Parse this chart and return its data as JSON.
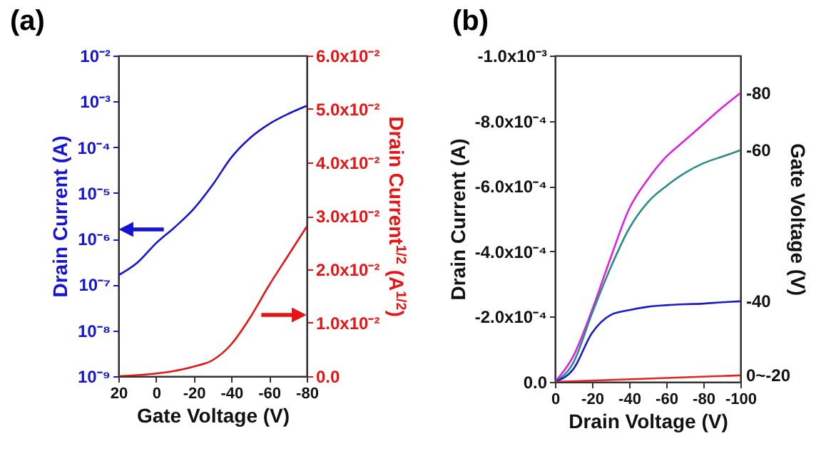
{
  "chart_data": [
    {
      "type": "line",
      "title": "(a)",
      "xlabel": "Gate Voltage (V)",
      "ylabel": "Drain Current (A)",
      "y2label": "Drain Current$^{1/2}$ (A$^{1/2}$)",
      "x": [
        20,
        10,
        0,
        -10,
        -20,
        -30,
        -40,
        -50,
        -60,
        -70,
        -80
      ],
      "xlim": [
        20,
        -80
      ],
      "xticks": [
        20,
        0,
        -20,
        -40,
        -60,
        -80
      ],
      "log": "y",
      "ylim": [
        1e-09,
        0.01
      ],
      "yticks": [
        {
          "value": 1e-09,
          "label": "10⁻⁹"
        },
        {
          "value": 1e-08,
          "label": "10⁻⁸"
        },
        {
          "value": 1e-07,
          "label": "10⁻⁷"
        },
        {
          "value": 1e-06,
          "label": "10⁻⁶"
        },
        {
          "value": 1e-05,
          "label": "10⁻⁵"
        },
        {
          "value": 0.0001,
          "label": "10⁻⁴"
        },
        {
          "value": 0.001,
          "label": "10⁻³"
        },
        {
          "value": 0.01,
          "label": "10⁻²"
        }
      ],
      "y2lim": [
        0,
        0.06
      ],
      "y2ticks": [
        {
          "value": 0,
          "label": "0.0"
        },
        {
          "value": 0.01,
          "label": "1.0x10⁻²"
        },
        {
          "value": 0.02,
          "label": "2.0x10⁻²"
        },
        {
          "value": 0.03,
          "label": "3.0x10⁻²"
        },
        {
          "value": 0.04,
          "label": "4.0x10⁻²"
        },
        {
          "value": 0.05,
          "label": "5.0x10⁻²"
        },
        {
          "value": 0.06,
          "label": "6.0x10⁻²"
        }
      ],
      "series": [
        {
          "color": "#1414d2",
          "values": [
            1.6e-07,
            3e-07,
            8e-07,
            1.8e-06,
            4.5e-06,
            1.5e-05,
            6e-05,
            0.00016,
            0.00032,
            0.00053,
            0.0008
          ]
        },
        {
          "color": "#e81414",
          "axis": "y2",
          "values": [
            0.0,
            0.0002,
            0.0005,
            0.001,
            0.0018,
            0.003,
            0.006,
            0.011,
            0.017,
            0.0225,
            0.028
          ]
        }
      ]
    },
    {
      "type": "line",
      "title": "(b)",
      "xlabel": "Drain Voltage (V)",
      "ylabel": "Drain Current (A)",
      "y2label": "Gate Voltage (V)",
      "x": [
        0,
        -10,
        -20,
        -30,
        -40,
        -50,
        -60,
        -70,
        -80,
        -90,
        -100
      ],
      "xlim": [
        0,
        -100
      ],
      "xticks": [
        0,
        -20,
        -40,
        -60,
        -80,
        -100
      ],
      "ylim": [
        0,
        -0.001
      ],
      "yticks": [
        {
          "value": 0,
          "label": "0.0"
        },
        {
          "value": -0.0002,
          "label": "-2.0x10⁻⁴"
        },
        {
          "value": -0.0004,
          "label": "-4.0x10⁻⁴"
        },
        {
          "value": -0.0006,
          "label": "-6.0x10⁻⁴"
        },
        {
          "value": -0.0008,
          "label": "-8.0x10⁻⁴"
        },
        {
          "value": -0.001,
          "label": "-1.0x10⁻³"
        }
      ],
      "series": [
        {
          "name": "-80",
          "color": "#e020e0",
          "values": [
            0,
            -8e-05,
            -0.00022,
            -0.00038,
            -0.00053,
            -0.00062,
            -0.00069,
            -0.00074,
            -0.00079,
            -0.00084,
            -0.000885
          ]
        },
        {
          "name": "-60",
          "color": "#2a8c8c",
          "values": [
            0,
            -6e-05,
            -0.00021,
            -0.00035,
            -0.00047,
            -0.00055,
            -0.0006,
            -0.00064,
            -0.00067,
            -0.00069,
            -0.00071
          ]
        },
        {
          "name": "-40",
          "color": "#1a1ac8",
          "values": [
            0,
            -4e-05,
            -0.00015,
            -0.000205,
            -0.00022,
            -0.00023,
            -0.000235,
            -0.000238,
            -0.00024,
            -0.000244,
            -0.000247
          ]
        },
        {
          "name": "0~-20",
          "color": "#e82020",
          "x": [
            0,
            -100
          ],
          "values": [
            0,
            -2e-05
          ]
        }
      ]
    }
  ]
}
